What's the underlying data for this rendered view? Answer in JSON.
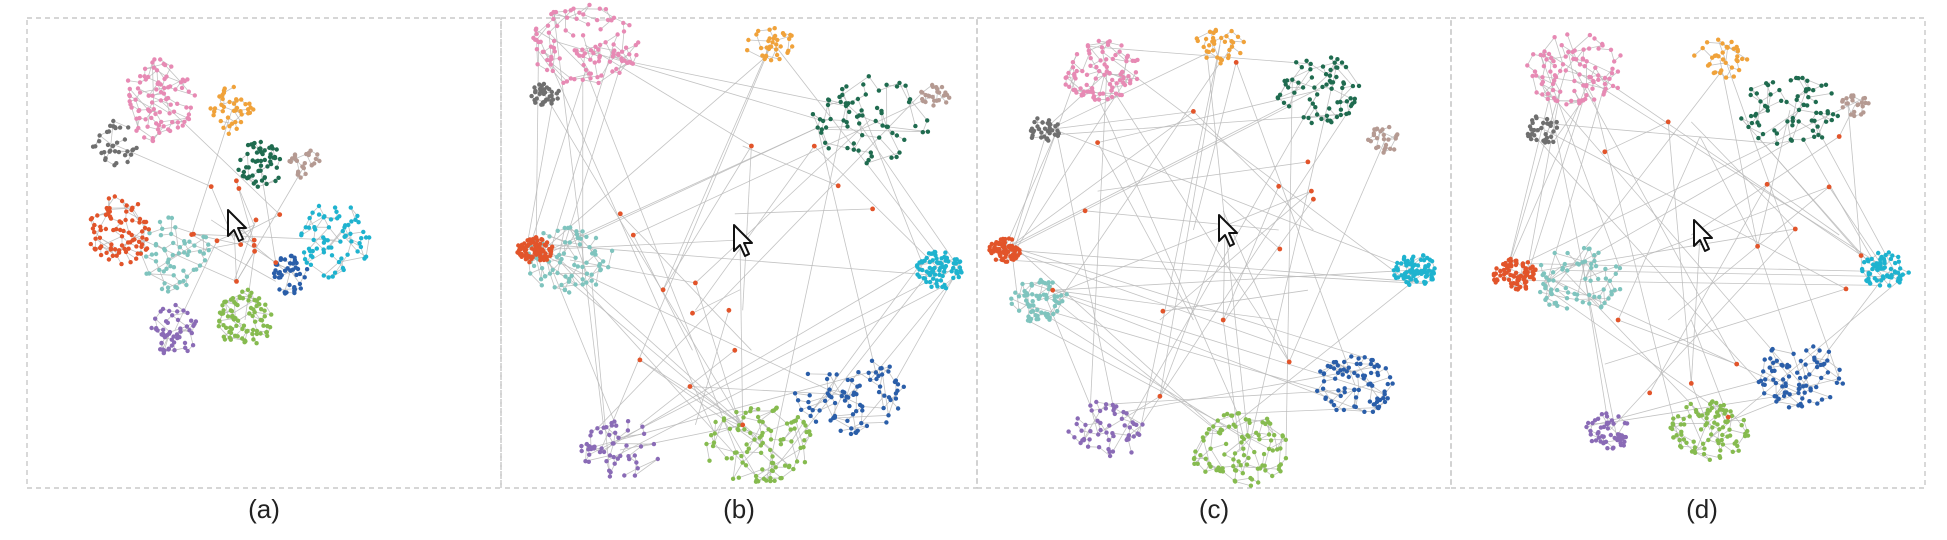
{
  "figure": {
    "panels": [
      {
        "id": "a",
        "caption": "(a)",
        "layout": "compact-radial"
      },
      {
        "id": "b",
        "caption": "(b)",
        "layout": "square-boundary"
      },
      {
        "id": "c",
        "caption": "(c)",
        "layout": "circular-boundary"
      },
      {
        "id": "d",
        "caption": "(d)",
        "layout": "free-form-boundary"
      }
    ]
  },
  "clusters": [
    {
      "name": "pink",
      "color": "#e78ab4"
    },
    {
      "name": "orange",
      "color": "#f0a23a"
    },
    {
      "name": "dark-green",
      "color": "#1f6b4f"
    },
    {
      "name": "brown",
      "color": "#b59a92"
    },
    {
      "name": "cyan",
      "color": "#1eb3cf"
    },
    {
      "name": "blue",
      "color": "#2a5ea9"
    },
    {
      "name": "light-green",
      "color": "#86bb4f"
    },
    {
      "name": "purple",
      "color": "#8a6bb6"
    },
    {
      "name": "teal",
      "color": "#7fc4be"
    },
    {
      "name": "red",
      "color": "#e2542a"
    },
    {
      "name": "gray",
      "color": "#6f6f6f"
    }
  ],
  "focus_node_color": "#e2542a",
  "edge_color": "#b9b9b9",
  "cursor_icon": "mouse-pointer-icon"
}
